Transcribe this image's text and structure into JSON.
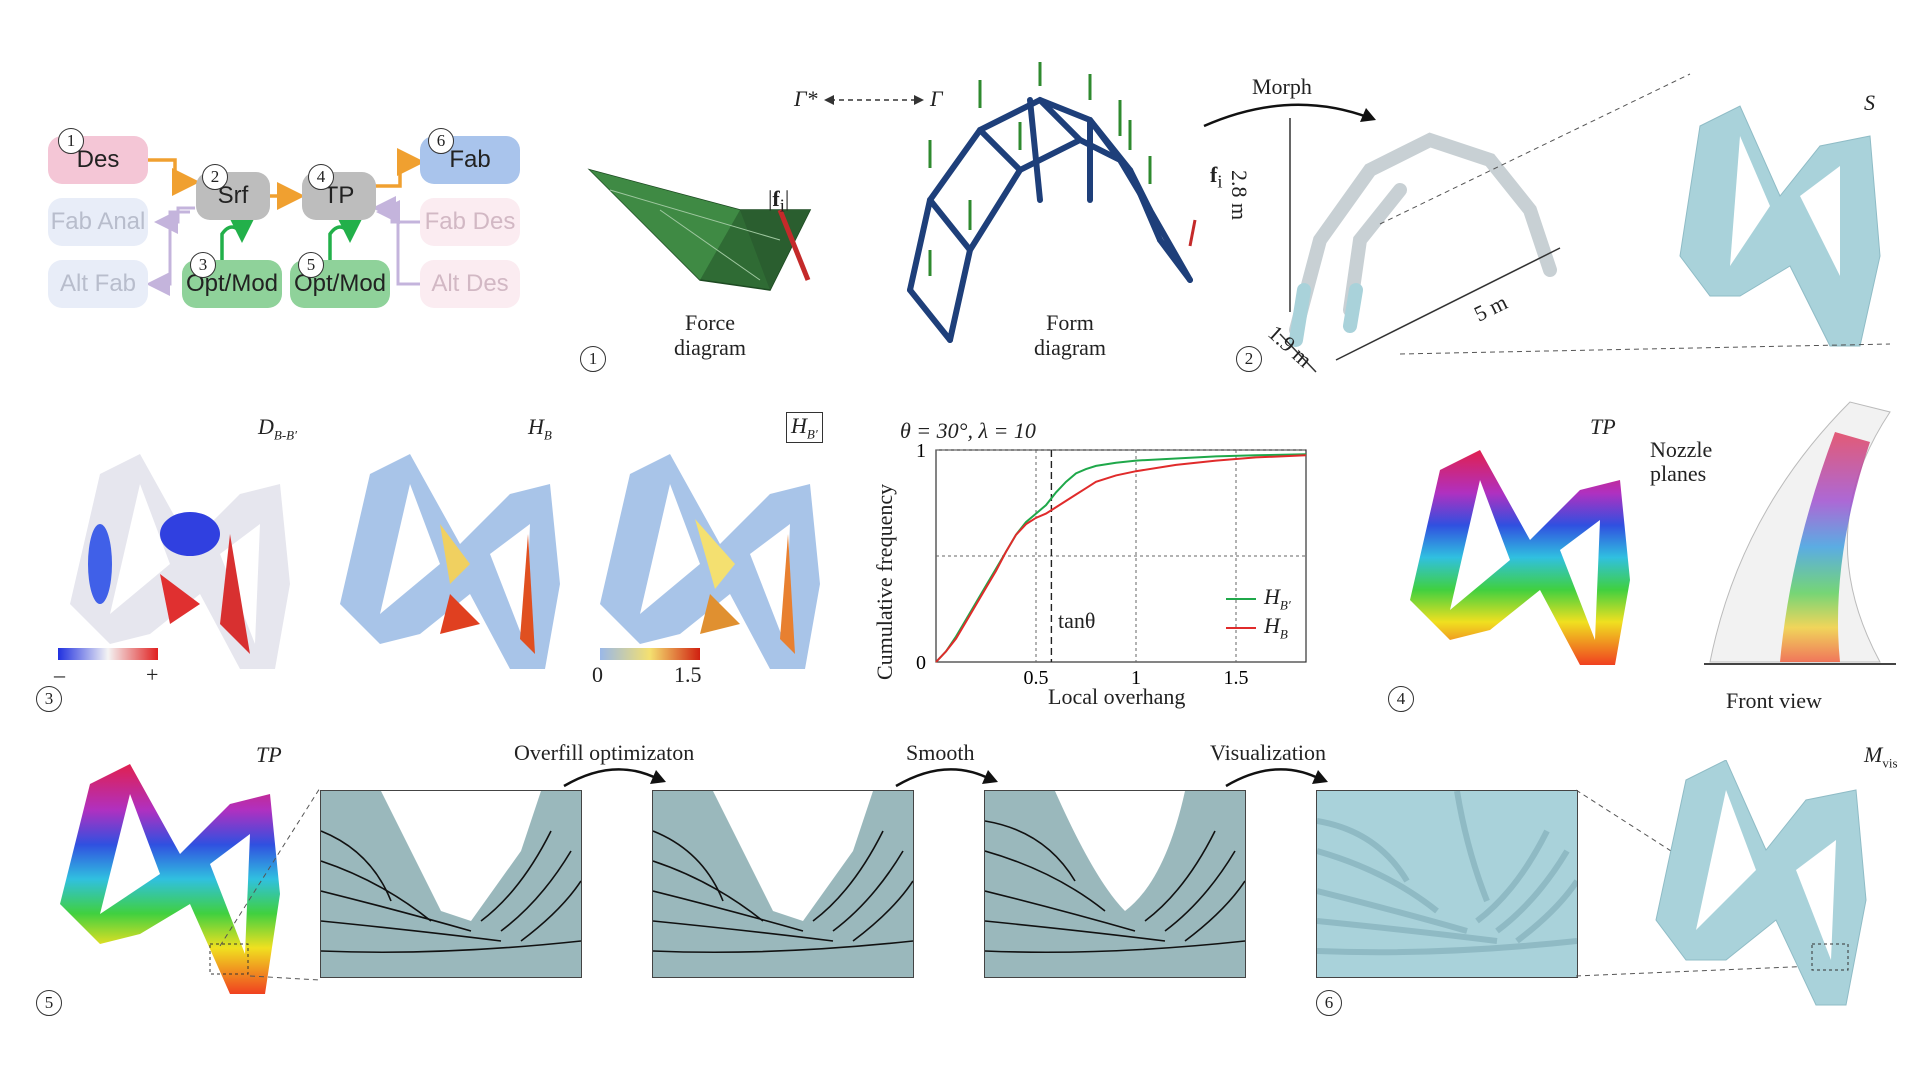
{
  "flow": {
    "des": "Des",
    "srf": "Srf",
    "tp": "TP",
    "fab": "Fab",
    "fab_anal": "Fab Anal",
    "fab_des": "Fab Des",
    "alt_fab": "Alt Fab",
    "alt_des": "Alt Des",
    "opt_mod_1": "Opt/Mod",
    "opt_mod_2": "Opt/Mod",
    "n1": "1",
    "n2": "2",
    "n3": "3",
    "n4": "4",
    "n5": "5",
    "n6": "6"
  },
  "row1": {
    "force_caption": "Force\ndiagram",
    "force_label": "f",
    "force_sub": "i",
    "form_caption": "Form\ndiagram",
    "gamma_star": "Γ*",
    "gamma": "Γ",
    "form_f": "f",
    "form_sub": "i",
    "morph": "Morph",
    "height": "2.8 m",
    "depth": "1.9 m",
    "length": "5 m",
    "s_label": "S",
    "step1": "1",
    "step2": "2"
  },
  "row2": {
    "d_label": "D",
    "d_sub": "B-B′",
    "hb_label": "H",
    "hb_sub": "B",
    "hbp_label": "H",
    "hbp_sub": "B′",
    "minus": "–",
    "plus": "+",
    "scale_min": "0",
    "scale_max": "1.5",
    "tp_label": "TP",
    "nozzle_planes": "Nozzle\nplanes",
    "front_view": "Front view",
    "step3": "3",
    "step4": "4"
  },
  "chart_data": {
    "type": "line",
    "title": "θ = 30°, λ = 10",
    "xlabel": "Local overhang",
    "ylabel": "Cumulative frequency",
    "xlim": [
      0,
      1.85
    ],
    "ylim": [
      0,
      1
    ],
    "xticks": [
      "0.5",
      "1",
      "1.5"
    ],
    "yticks": [
      "0",
      "1"
    ],
    "annotation": "tanθ",
    "annotation_x": 0.577,
    "legend": "bottom-right",
    "series": [
      {
        "name": "H_B′",
        "label_main": "H",
        "label_sub": "B′",
        "color": "#1fa84a",
        "x": [
          0,
          0.05,
          0.1,
          0.15,
          0.2,
          0.25,
          0.3,
          0.35,
          0.4,
          0.45,
          0.5,
          0.55,
          0.6,
          0.65,
          0.7,
          0.75,
          0.8,
          0.9,
          1.0,
          1.2,
          1.4,
          1.6,
          1.85
        ],
        "y": [
          0,
          0.05,
          0.12,
          0.2,
          0.28,
          0.36,
          0.44,
          0.52,
          0.6,
          0.66,
          0.7,
          0.74,
          0.8,
          0.85,
          0.89,
          0.91,
          0.925,
          0.94,
          0.95,
          0.96,
          0.97,
          0.975,
          0.98
        ]
      },
      {
        "name": "H_B",
        "label_main": "H",
        "label_sub": "B",
        "color": "#e02b2b",
        "x": [
          0,
          0.05,
          0.1,
          0.15,
          0.2,
          0.25,
          0.3,
          0.35,
          0.4,
          0.45,
          0.5,
          0.55,
          0.6,
          0.65,
          0.7,
          0.75,
          0.8,
          0.9,
          1.0,
          1.2,
          1.4,
          1.6,
          1.85
        ],
        "y": [
          0,
          0.05,
          0.11,
          0.19,
          0.27,
          0.35,
          0.43,
          0.52,
          0.6,
          0.65,
          0.68,
          0.7,
          0.73,
          0.76,
          0.79,
          0.82,
          0.85,
          0.88,
          0.9,
          0.93,
          0.95,
          0.965,
          0.975
        ]
      }
    ]
  },
  "row3": {
    "tp_label": "TP",
    "overfill": "Overfill optimizaton",
    "smooth": "Smooth",
    "visualization": "Visualization",
    "m_label": "M",
    "m_sub": "vis",
    "step5": "5",
    "step6": "6"
  },
  "colors": {
    "des": "#f4c6d6",
    "srf": "#bdbdbd",
    "fab": "#a9c4ec",
    "opt": "#8fd29a",
    "faded_blue": "#e8edf8",
    "faded_pink": "#fbecf1",
    "orange_arrow": "#f0a030",
    "green_arrow": "#22b04a",
    "lilac_arrow": "#c4b4dc",
    "surface": "#a9d2da",
    "panel": "#9ab8bc",
    "arch": "#1e3f7a"
  }
}
